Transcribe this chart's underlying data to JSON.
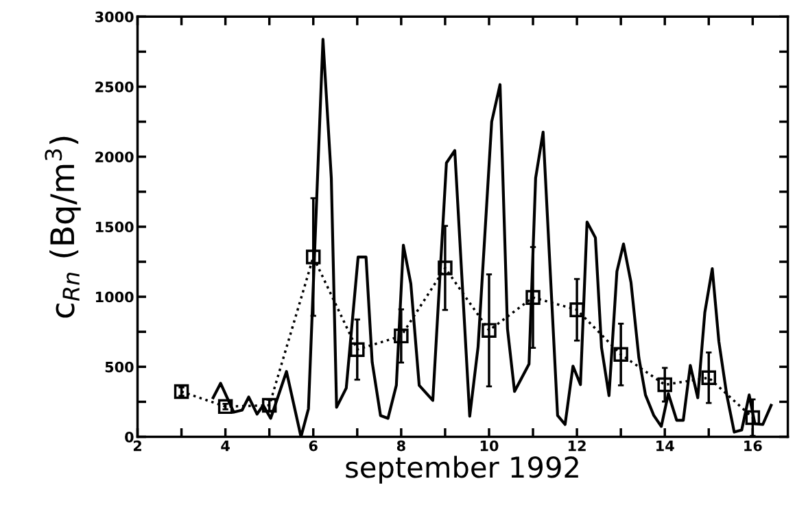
{
  "chart_data": {
    "type": "line",
    "xlabel": "september 1992",
    "ylabel": "c$_{Rn}$ (Bq/m$^{3}$)",
    "xlim": [
      2,
      16.8
    ],
    "ylim": [
      0,
      3000
    ],
    "xticks": [
      2,
      {
        "value": 3,
        "label": null
      },
      4,
      {
        "value": 5,
        "label": null
      },
      6,
      {
        "value": 7,
        "label": null
      },
      8,
      {
        "value": 9,
        "label": null
      },
      10,
      {
        "value": 11,
        "label": null
      },
      12,
      {
        "value": 13,
        "label": null
      },
      14,
      {
        "value": 15,
        "label": null
      },
      16
    ],
    "yticks": [
      0,
      {
        "value": 250,
        "label": null
      },
      500,
      {
        "value": 750,
        "label": null
      },
      1000,
      {
        "value": 1250,
        "label": null
      },
      1500,
      {
        "value": 1750,
        "label": null
      },
      2000,
      {
        "value": 2250,
        "label": null
      },
      2500,
      {
        "value": 2750,
        "label": null
      },
      3000
    ],
    "series": [
      {
        "color": "#000000",
        "line_style": "solid",
        "marker": "none",
        "x": [
          3.72,
          3.89,
          4.19,
          4.38,
          4.53,
          4.72,
          4.86,
          5.03,
          5.39,
          5.72,
          5.89,
          6.22,
          6.41,
          6.53,
          6.75,
          7.02,
          7.2,
          7.34,
          7.53,
          7.7,
          7.89,
          8.05,
          8.22,
          8.41,
          8.72,
          9.03,
          9.22,
          9.56,
          9.75,
          10.06,
          10.25,
          10.42,
          10.58,
          10.91,
          11.06,
          11.23,
          11.56,
          11.73,
          11.91,
          12.08,
          12.23,
          12.42,
          12.56,
          12.73,
          12.91,
          13.06,
          13.23,
          13.41,
          13.56,
          13.75,
          13.92,
          14.08,
          14.27,
          14.42,
          14.58,
          14.75,
          14.91,
          15.08,
          15.23,
          15.41,
          15.58,
          15.75,
          15.92,
          16.05,
          16.23,
          16.42
        ],
        "values": [
          279,
          382,
          176,
          191,
          284,
          162,
          225,
          132,
          466,
          0,
          201,
          2838,
          1848,
          211,
          348,
          1284,
          1284,
          534,
          152,
          132,
          368,
          1368,
          1093,
          368,
          260,
          1956,
          2044,
          147,
          642,
          2250,
          2515,
          770,
          324,
          520,
          1848,
          2176,
          152,
          88,
          505,
          373,
          1534,
          1422,
          637,
          294,
          1181,
          1377,
          1103,
          564,
          299,
          152,
          74,
          309,
          118,
          118,
          510,
          279,
          887,
          1201,
          681,
          299,
          34,
          49,
          299,
          93,
          88,
          225
        ]
      },
      {
        "color": "#000000",
        "line_style": "dotted",
        "marker": "square",
        "x": [
          3,
          4,
          5,
          6,
          7,
          8,
          9,
          10,
          11,
          12,
          13,
          14,
          15,
          16
        ],
        "values": [
          323,
          216,
          225,
          1284,
          623,
          720,
          1206,
          760,
          995,
          907,
          588,
          372,
          422,
          137
        ],
        "errors": [
          30,
          20,
          40,
          420,
          215,
          190,
          300,
          400,
          360,
          220,
          220,
          120,
          180,
          130
        ]
      }
    ]
  }
}
